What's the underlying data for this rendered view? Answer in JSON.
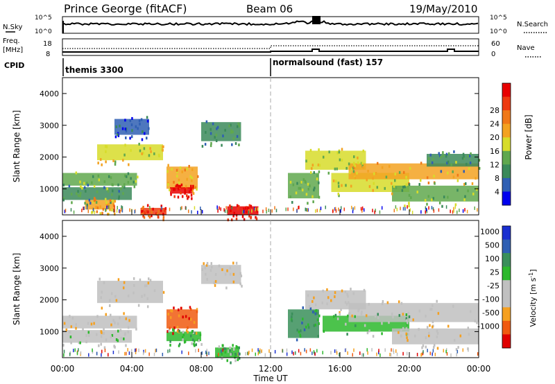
{
  "header": {
    "station": "Prince George (fitACF)",
    "beam": "Beam 06",
    "date": "19/May/2010"
  },
  "top_panels": {
    "nsky_label": "N.Sky",
    "nsky_ticks": [
      "10^5",
      "10^0"
    ],
    "nsearch_label": "N.Search",
    "nsearch_ticks": [
      "10^5",
      "10^0"
    ],
    "freq_label": "Freq.",
    "freq_unit": "[MHz]",
    "freq_ticks": [
      "18",
      "8"
    ],
    "nave_label": "Nave",
    "nave_ticks": [
      "60",
      "0"
    ],
    "cpid_label": "CPID",
    "cpid_modes": [
      {
        "name": "themis 3300",
        "start_hour": 0
      },
      {
        "name": "normalsound (fast) 157",
        "start_hour": 12
      }
    ]
  },
  "colors": {
    "power": [
      "#0000ee",
      "#2f5fb3",
      "#3b8a5a",
      "#60a84e",
      "#d7dc2a",
      "#f3a221",
      "#f07818",
      "#ee3a10",
      "#e80000"
    ],
    "velocity": [
      "#e00000",
      "#f05a10",
      "#f5a020",
      "#c0c0c0",
      "#c0c0c0",
      "#2db82d",
      "#3a8f5a",
      "#2f5fb3",
      "#1a2fd0"
    ]
  },
  "chart_data": [
    {
      "type": "heatmap",
      "name": "power",
      "ylabel": "Slant Range [km]",
      "xlabel": "Time UT",
      "x_ticks": [
        "00:00",
        "04:00",
        "08:00",
        "12:00",
        "16:00",
        "20:00",
        "00:00"
      ],
      "y_ticks": [
        "1000",
        "2000",
        "3000",
        "4000"
      ],
      "xlim": [
        0,
        24
      ],
      "ylim": [
        180,
        4500
      ],
      "colorbar_label": "Power [dB]",
      "colorbar_ticks": [
        "4",
        "8",
        "12",
        "16",
        "20",
        "24",
        "28"
      ],
      "bands": [
        {
          "t0": 0.0,
          "t1": 4.3,
          "r0": 1100,
          "r1": 1500,
          "level": 3
        },
        {
          "t0": 0.0,
          "t1": 4.0,
          "r0": 650,
          "r1": 1050,
          "level": 2
        },
        {
          "t0": 1.3,
          "t1": 3.0,
          "r0": 350,
          "r1": 650,
          "level": 5
        },
        {
          "t0": 2.0,
          "t1": 5.8,
          "r0": 1900,
          "r1": 2400,
          "level": 4
        },
        {
          "t0": 3.0,
          "t1": 5.0,
          "r0": 2700,
          "r1": 3200,
          "level": 1
        },
        {
          "t0": 6.0,
          "t1": 7.8,
          "r0": 1000,
          "r1": 1700,
          "level": 5
        },
        {
          "t0": 6.2,
          "t1": 7.5,
          "r0": 850,
          "r1": 1050,
          "level": 8
        },
        {
          "t0": 8.0,
          "t1": 10.3,
          "r0": 2500,
          "r1": 3100,
          "level": 2
        },
        {
          "t0": 9.5,
          "t1": 11.3,
          "r0": 180,
          "r1": 450,
          "level": 8
        },
        {
          "t0": 4.5,
          "t1": 6.0,
          "r0": 180,
          "r1": 400,
          "level": 7
        },
        {
          "t0": 13.0,
          "t1": 14.8,
          "r0": 700,
          "r1": 1500,
          "level": 3
        },
        {
          "t0": 14.0,
          "t1": 17.5,
          "r0": 1600,
          "r1": 2200,
          "level": 4
        },
        {
          "t0": 15.5,
          "t1": 20.0,
          "r0": 900,
          "r1": 1500,
          "level": 4
        },
        {
          "t0": 16.5,
          "t1": 24.0,
          "r0": 1300,
          "r1": 1800,
          "level": 5
        },
        {
          "t0": 19.0,
          "t1": 24.0,
          "r0": 600,
          "r1": 1100,
          "level": 3
        },
        {
          "t0": 21.0,
          "t1": 24.0,
          "r0": 1700,
          "r1": 2100,
          "level": 2
        }
      ]
    },
    {
      "type": "heatmap",
      "name": "velocity",
      "ylabel": "Slant Range [km]",
      "xlabel": "Time UT",
      "x_ticks": [
        "00:00",
        "04:00",
        "08:00",
        "12:00",
        "16:00",
        "20:00",
        "00:00"
      ],
      "y_ticks": [
        "1000",
        "2000",
        "3000",
        "4000"
      ],
      "xlim": [
        0,
        24
      ],
      "ylim": [
        180,
        4500
      ],
      "colorbar_label": "Velocity [m s",
      "colorbar_label_sup": "-1",
      "colorbar_label_end": "]",
      "colorbar_ticks": [
        "1000",
        "500",
        "100",
        "25",
        "-25",
        "-100",
        "-500",
        "-1000"
      ],
      "bands": [
        {
          "t0": 0.0,
          "t1": 4.3,
          "r0": 1100,
          "r1": 1500,
          "level": 3
        },
        {
          "t0": 0.0,
          "t1": 4.0,
          "r0": 650,
          "r1": 1050,
          "level": 4
        },
        {
          "t0": 2.0,
          "t1": 5.8,
          "r0": 1900,
          "r1": 2600,
          "level": 3
        },
        {
          "t0": 6.0,
          "t1": 7.8,
          "r0": 1100,
          "r1": 1700,
          "level": 1
        },
        {
          "t0": 6.0,
          "t1": 8.0,
          "r0": 700,
          "r1": 1000,
          "level": 5
        },
        {
          "t0": 8.0,
          "t1": 10.3,
          "r0": 2500,
          "r1": 3100,
          "level": 3
        },
        {
          "t0": 8.8,
          "t1": 10.2,
          "r0": 180,
          "r1": 500,
          "level": 5
        },
        {
          "t0": 13.0,
          "t1": 14.8,
          "r0": 800,
          "r1": 1700,
          "level": 6
        },
        {
          "t0": 14.0,
          "t1": 17.5,
          "r0": 1700,
          "r1": 2300,
          "level": 3
        },
        {
          "t0": 15.0,
          "t1": 20.0,
          "r0": 1000,
          "r1": 1500,
          "level": 5
        },
        {
          "t0": 16.5,
          "t1": 24.0,
          "r0": 1300,
          "r1": 1900,
          "level": 3
        },
        {
          "t0": 19.0,
          "t1": 24.0,
          "r0": 600,
          "r1": 1100,
          "level": 3
        }
      ]
    }
  ]
}
